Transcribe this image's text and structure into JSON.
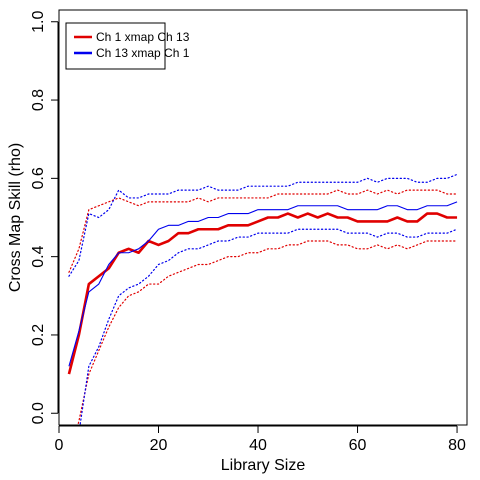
{
  "chart_data": {
    "type": "line",
    "xlabel": "Library Size",
    "ylabel": "Cross Map Skill (rho)",
    "xlim": [
      0,
      82
    ],
    "ylim": [
      -0.03,
      1.03
    ],
    "xticks": [
      0,
      20,
      40,
      60,
      80
    ],
    "xtick_labels": [
      "0",
      "20",
      "40",
      "60",
      "80"
    ],
    "yticks": [
      0.0,
      0.2,
      0.4,
      0.6,
      0.8,
      1.0
    ],
    "ytick_labels": [
      "0.0",
      "0.2",
      "0.4",
      "0.6",
      "0.8",
      "1.0"
    ],
    "legend": {
      "placement": "top-left",
      "entries": [
        {
          "label": "Ch 1 xmap Ch 13",
          "color": "#e00000"
        },
        {
          "label": "Ch 13  xmap Ch 1",
          "color": "#0000ee"
        }
      ]
    },
    "x": [
      2,
      4,
      6,
      8,
      10,
      12,
      14,
      16,
      18,
      20,
      22,
      24,
      26,
      28,
      30,
      32,
      34,
      36,
      38,
      40,
      42,
      44,
      46,
      48,
      50,
      52,
      54,
      56,
      58,
      60,
      62,
      64,
      66,
      68,
      70,
      72,
      74,
      76,
      78,
      80
    ],
    "series": [
      {
        "name": "Ch 1 xmap Ch 13",
        "color": "#e00000",
        "style": "solid-thick",
        "values": [
          0.1,
          0.2,
          0.33,
          0.35,
          0.37,
          0.41,
          0.42,
          0.41,
          0.44,
          0.43,
          0.44,
          0.46,
          0.46,
          0.47,
          0.47,
          0.47,
          0.48,
          0.48,
          0.48,
          0.49,
          0.5,
          0.5,
          0.51,
          0.5,
          0.51,
          0.5,
          0.51,
          0.5,
          0.5,
          0.49,
          0.49,
          0.49,
          0.49,
          0.5,
          0.49,
          0.49,
          0.51,
          0.51,
          0.5,
          0.5
        ],
        "upper": [
          0.36,
          0.42,
          0.52,
          0.53,
          0.54,
          0.55,
          0.54,
          0.53,
          0.54,
          0.54,
          0.54,
          0.54,
          0.54,
          0.55,
          0.54,
          0.55,
          0.55,
          0.55,
          0.55,
          0.55,
          0.55,
          0.56,
          0.56,
          0.56,
          0.56,
          0.56,
          0.56,
          0.57,
          0.56,
          0.56,
          0.57,
          0.56,
          0.57,
          0.56,
          0.57,
          0.57,
          0.57,
          0.57,
          0.56,
          0.56
        ],
        "lower": [
          -0.12,
          -0.02,
          0.1,
          0.16,
          0.22,
          0.27,
          0.3,
          0.31,
          0.33,
          0.33,
          0.35,
          0.36,
          0.37,
          0.38,
          0.38,
          0.39,
          0.4,
          0.4,
          0.41,
          0.41,
          0.42,
          0.42,
          0.43,
          0.43,
          0.44,
          0.44,
          0.44,
          0.43,
          0.43,
          0.42,
          0.42,
          0.43,
          0.42,
          0.43,
          0.42,
          0.43,
          0.44,
          0.44,
          0.44,
          0.44
        ]
      },
      {
        "name": "Ch 13  xmap Ch 1",
        "color": "#0000ee",
        "style": "solid-thin",
        "values": [
          0.12,
          0.21,
          0.31,
          0.33,
          0.38,
          0.41,
          0.41,
          0.42,
          0.44,
          0.47,
          0.48,
          0.48,
          0.49,
          0.49,
          0.5,
          0.5,
          0.51,
          0.51,
          0.51,
          0.52,
          0.52,
          0.52,
          0.52,
          0.53,
          0.53,
          0.53,
          0.53,
          0.53,
          0.52,
          0.52,
          0.52,
          0.52,
          0.53,
          0.53,
          0.52,
          0.52,
          0.53,
          0.53,
          0.53,
          0.54
        ],
        "upper": [
          0.35,
          0.39,
          0.51,
          0.5,
          0.52,
          0.57,
          0.55,
          0.55,
          0.56,
          0.56,
          0.56,
          0.57,
          0.57,
          0.57,
          0.58,
          0.57,
          0.57,
          0.57,
          0.58,
          0.58,
          0.58,
          0.58,
          0.58,
          0.59,
          0.59,
          0.59,
          0.59,
          0.59,
          0.59,
          0.59,
          0.6,
          0.59,
          0.6,
          0.6,
          0.6,
          0.59,
          0.59,
          0.6,
          0.6,
          0.61
        ],
        "lower": [
          -0.15,
          -0.05,
          0.12,
          0.17,
          0.24,
          0.3,
          0.32,
          0.33,
          0.35,
          0.38,
          0.39,
          0.41,
          0.42,
          0.42,
          0.43,
          0.44,
          0.44,
          0.45,
          0.45,
          0.46,
          0.46,
          0.46,
          0.46,
          0.47,
          0.47,
          0.47,
          0.47,
          0.47,
          0.46,
          0.46,
          0.46,
          0.45,
          0.46,
          0.46,
          0.45,
          0.45,
          0.46,
          0.46,
          0.46,
          0.47
        ]
      }
    ]
  }
}
